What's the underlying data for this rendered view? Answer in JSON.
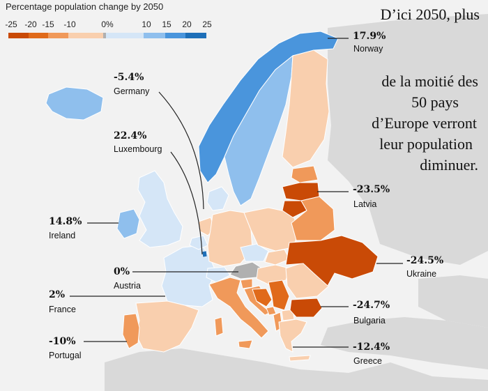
{
  "legend": {
    "title": "Percentage population change by 2050",
    "ticks": [
      "-25",
      "-20",
      "-15",
      "-10",
      "0%",
      "10",
      "15",
      "20",
      "25"
    ],
    "colors": {
      "decline_severe": "#c94a06",
      "decline_strong": "#e06a1a",
      "decline_mid": "#f0995a",
      "decline_mild": "#f9cfae",
      "neutral": "#b0b0b0",
      "growth_mild": "#d5e6f7",
      "growth_mid": "#8fbfed",
      "growth_strong": "#4a95dc",
      "growth_high": "#1e6fb8",
      "sea": "#f2f2f2",
      "nondata_land": "#d9d9d9"
    }
  },
  "headline": {
    "line1": "D’ici 2050, plus",
    "line2": "de la moitié des",
    "line3": "50 pays",
    "line4": "d’Europe verront",
    "line5": "leur population",
    "line6": "diminuer."
  },
  "callouts": [
    {
      "key": "norway",
      "value": "17.9%",
      "name": "Norway"
    },
    {
      "key": "germany",
      "value": "-5.4%",
      "name": "Germany"
    },
    {
      "key": "luxembourg",
      "value": "22.4%",
      "name": "Luxembourg"
    },
    {
      "key": "latvia",
      "value": "-23.5%",
      "name": "Latvia"
    },
    {
      "key": "ireland",
      "value": "14.8%",
      "name": "Ireland"
    },
    {
      "key": "ukraine",
      "value": "-24.5%",
      "name": "Ukraine"
    },
    {
      "key": "austria",
      "value": "0%",
      "name": "Austria"
    },
    {
      "key": "bulgaria",
      "value": "-24.7%",
      "name": "Bulgaria"
    },
    {
      "key": "france",
      "value": "2%",
      "name": "France"
    },
    {
      "key": "portugal",
      "value": "-10%",
      "name": "Portugal"
    },
    {
      "key": "greece",
      "value": "-12.4%",
      "name": "Greece"
    }
  ]
}
